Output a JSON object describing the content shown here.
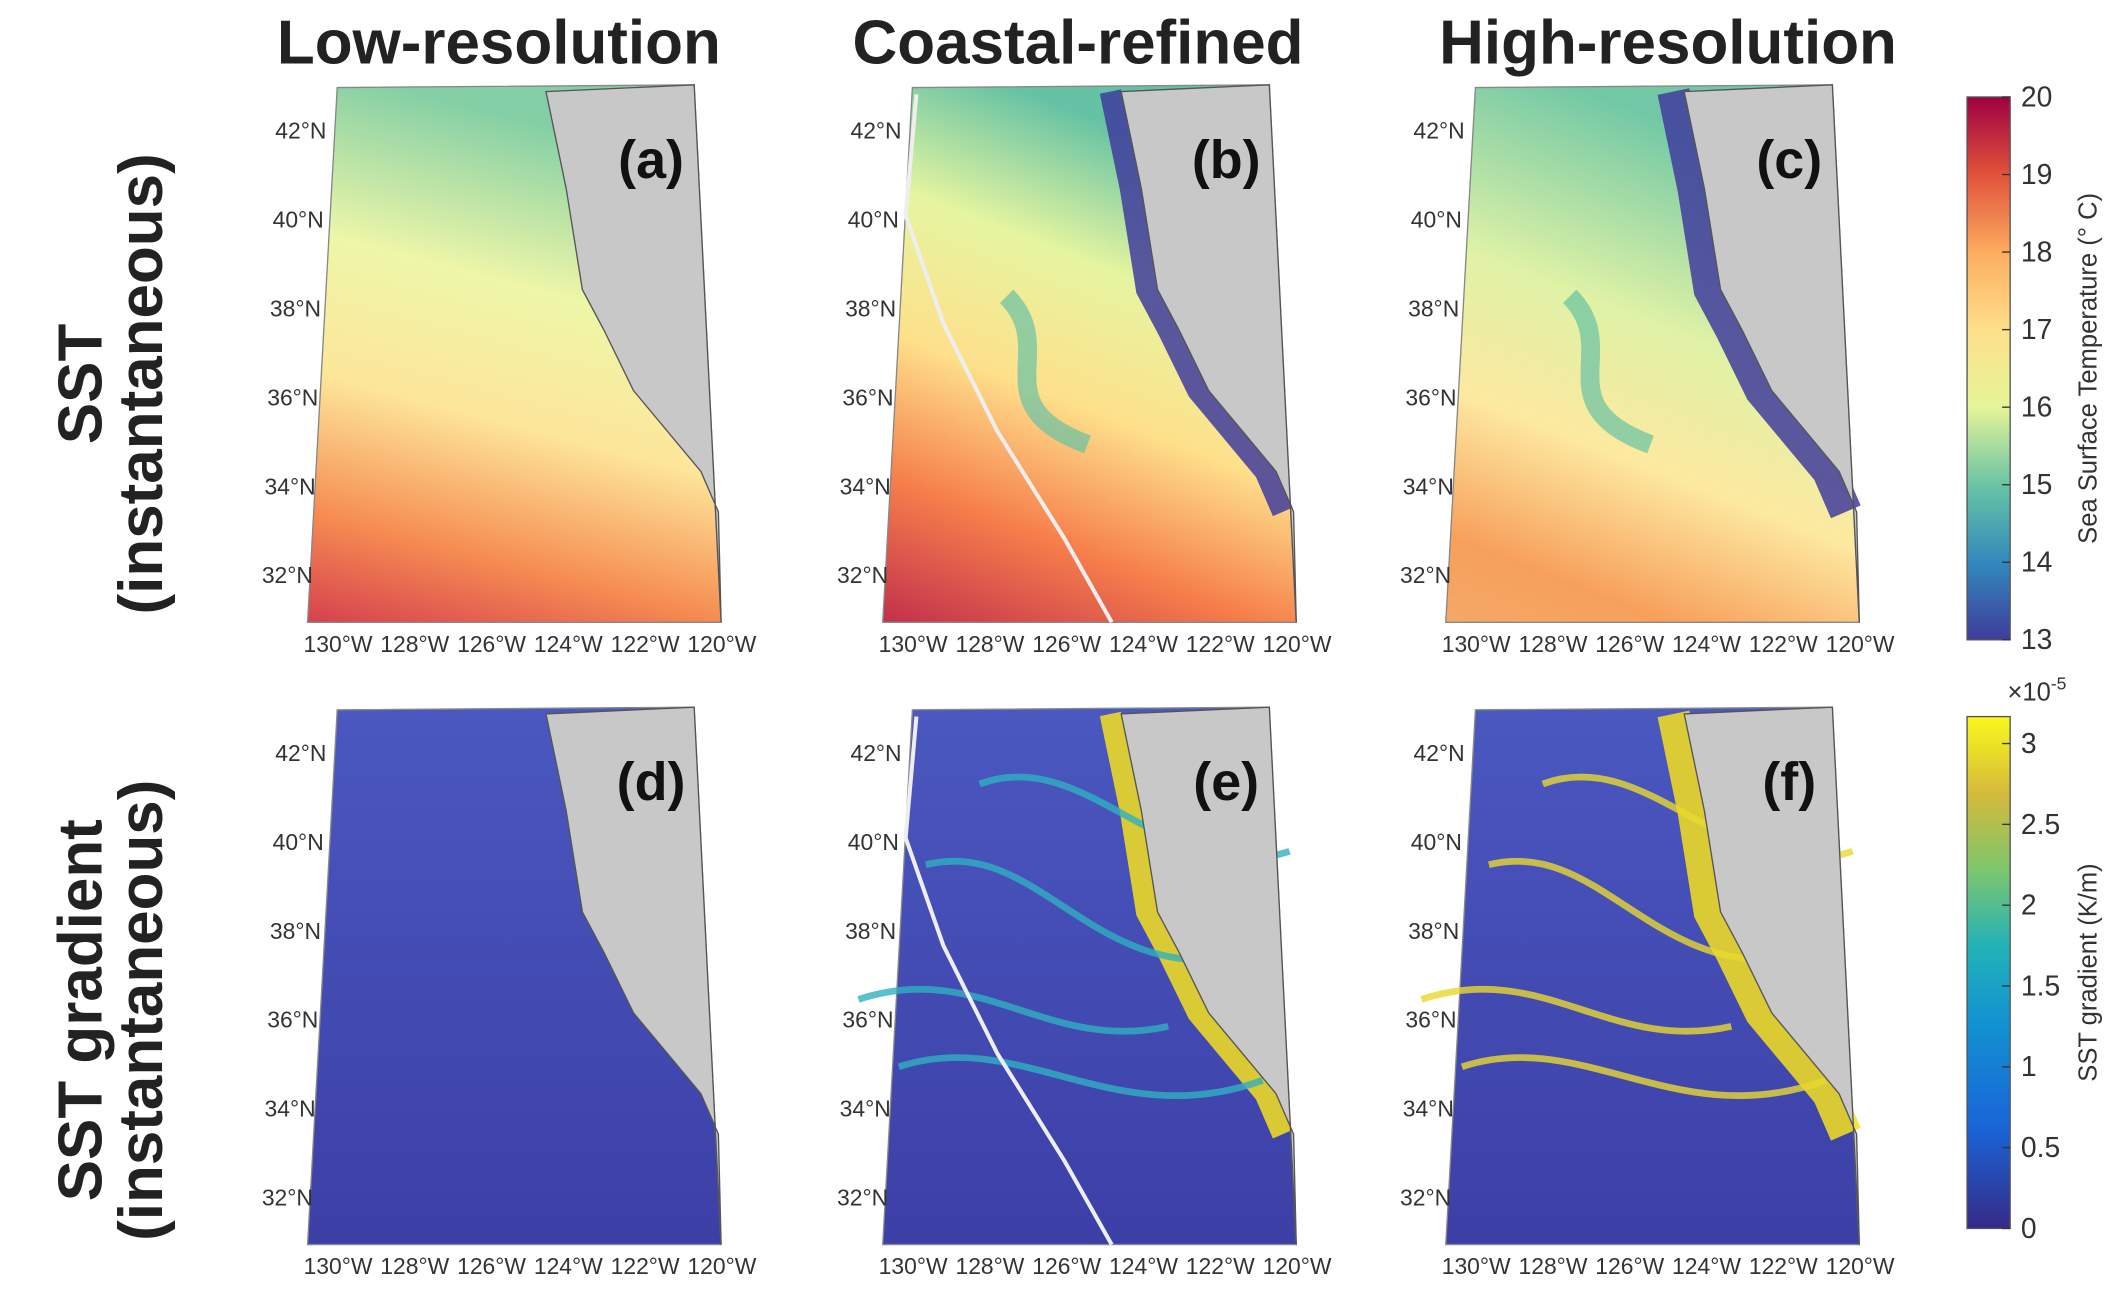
{
  "column_titles": [
    "Low-resolution",
    "Coastal-refined",
    "High-resolution"
  ],
  "row_titles": [
    [
      "SST",
      "(instantaneous)"
    ],
    [
      "SST gradient",
      "(instantaneous)"
    ]
  ],
  "panels": [
    {
      "label": "(a)"
    },
    {
      "label": "(b)"
    },
    {
      "label": "(c)"
    },
    {
      "label": "(d)"
    },
    {
      "label": "(e)"
    },
    {
      "label": "(f)"
    }
  ],
  "lat_ticks": [
    "42°N",
    "40°N",
    "38°N",
    "36°N",
    "34°N",
    "32°N"
  ],
  "lon_ticks": [
    "130°W",
    "128°W",
    "126°W",
    "124°W",
    "122°W",
    "120°W"
  ],
  "colorbars": [
    {
      "label": "Sea Surface Temperature (° C)",
      "ticks": [
        13,
        14,
        15,
        16,
        17,
        18,
        19,
        20
      ]
    },
    {
      "label": "SST gradient (K/m)",
      "ticks": [
        0,
        0.5,
        1,
        1.5,
        2,
        2.5,
        3
      ],
      "multiplier": "×10",
      "exponent": "-5"
    }
  ]
}
